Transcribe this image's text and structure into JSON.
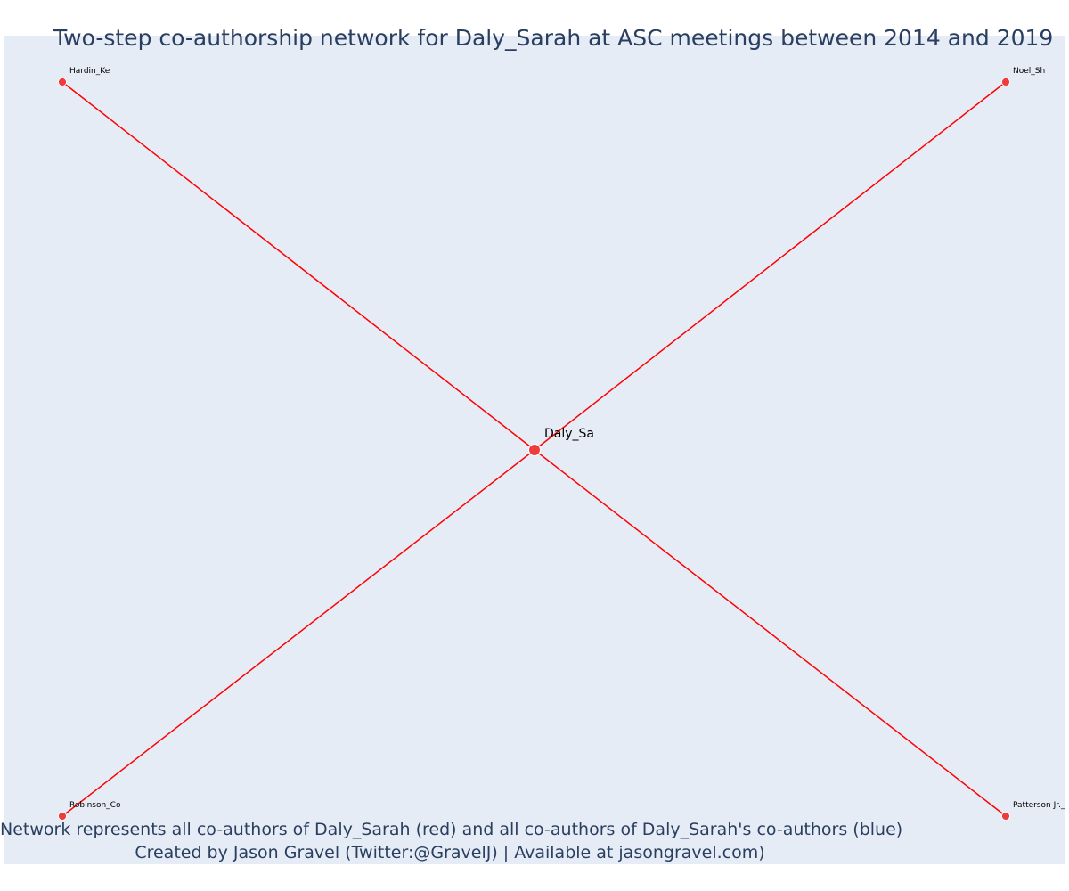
{
  "title": "Two-step co-authorship network for Daly_Sarah at ASC meetings between 2014 and 2019",
  "footer": {
    "line1": "Network represents all co-authors of Daly_Sarah (red) and all co-authors of Daly_Sarah's co-authors (blue)",
    "line2": "Created by Jason Gravel (Twitter:@GravelJ) | Available at jasongravel.com)"
  },
  "colors": {
    "edge": "#ff0000",
    "node": "#ef3b3b",
    "background": "#e5ecf6",
    "text": "#2a3f5f"
  },
  "network": {
    "center": {
      "label": "Daly_Sa"
    },
    "coauthors": [
      {
        "label": "Hardin_Ke"
      },
      {
        "label": "Noel_Sh"
      },
      {
        "label": "Robinson_Co"
      },
      {
        "label": "Patterson Jr._"
      }
    ]
  }
}
